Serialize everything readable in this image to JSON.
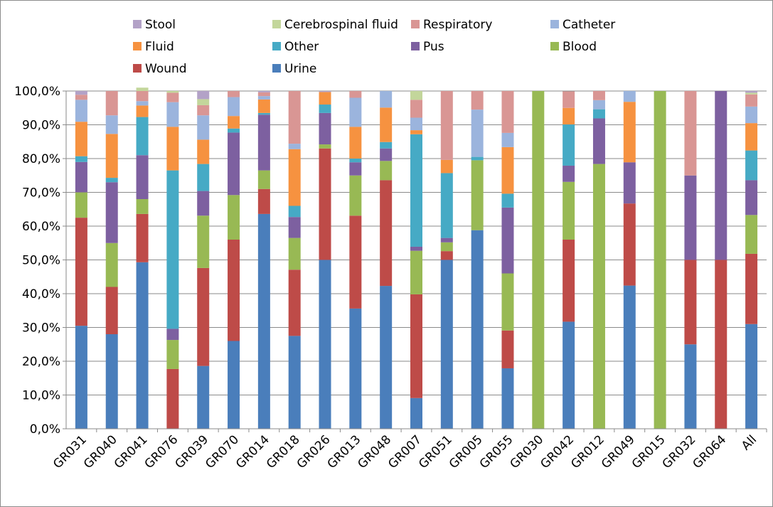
{
  "chart_data": {
    "type": "bar",
    "stacked": true,
    "percent": true,
    "categories": [
      "GR031",
      "GR040",
      "GR041",
      "GR076",
      "GR039",
      "GR070",
      "GR014",
      "GR018",
      "GR026",
      "GR013",
      "GR048",
      "GR007",
      "GR051",
      "GR005",
      "GR055",
      "GR030",
      "GR042",
      "GR012",
      "GR049",
      "GR015",
      "GR032",
      "GR064",
      "All"
    ],
    "ylim": [
      0,
      100
    ],
    "yticks": [
      "0,0%",
      "10,0%",
      "20,0%",
      "30,0%",
      "40,0%",
      "50,0%",
      "60,0%",
      "70,0%",
      "80,0%",
      "90,0%",
      "100,0%"
    ],
    "legend_position": "top",
    "series": [
      {
        "name": "Urine",
        "color": "#4a7ebb",
        "values": [
          30.5,
          28.0,
          49.3,
          0,
          18.6,
          26.0,
          63.6,
          27.5,
          50.0,
          35.6,
          42.3,
          9.1,
          50.0,
          58.8,
          17.9,
          0,
          31.7,
          0,
          42.4,
          0,
          25.0,
          0,
          31.0
        ]
      },
      {
        "name": "Wound",
        "color": "#be4b48",
        "values": [
          32.0,
          14.0,
          14.3,
          17.7,
          29.0,
          30.0,
          7.4,
          19.6,
          33.0,
          27.5,
          31.3,
          30.7,
          2.6,
          0,
          11.2,
          0,
          24.3,
          0,
          24.3,
          0,
          25.0,
          50.0,
          20.8
        ]
      },
      {
        "name": "Blood",
        "color": "#98b954",
        "values": [
          7.5,
          13.0,
          4.4,
          8.6,
          15.5,
          13.2,
          5.5,
          9.4,
          1.2,
          11.9,
          5.7,
          12.9,
          2.6,
          20.7,
          16.9,
          100,
          17.1,
          78.4,
          0,
          100,
          0,
          0,
          11.5
        ]
      },
      {
        "name": "Pus",
        "color": "#7d60a0",
        "values": [
          9.0,
          18.0,
          13.0,
          3.3,
          7.3,
          18.5,
          16.5,
          6.2,
          9.3,
          3.9,
          3.7,
          1.2,
          1.3,
          0,
          19.5,
          0,
          4.8,
          13.5,
          12.2,
          0,
          25.0,
          50.0,
          10.3
        ]
      },
      {
        "name": "Other",
        "color": "#46aac5",
        "values": [
          1.7,
          1.3,
          11.3,
          46.9,
          8.0,
          1.2,
          0.5,
          3.3,
          2.5,
          1.1,
          1.9,
          33.3,
          19.2,
          1.0,
          4.1,
          0,
          12.2,
          2.7,
          0,
          0,
          0,
          0,
          8.8
        ]
      },
      {
        "name": "Fluid",
        "color": "#f69240",
        "values": [
          10.2,
          13.0,
          3.4,
          12.9,
          7.2,
          3.7,
          4.0,
          16.8,
          3.7,
          9.4,
          10.2,
          1.2,
          3.9,
          0,
          13.8,
          0,
          4.9,
          0,
          17.9,
          0,
          0,
          0,
          8.1
        ]
      },
      {
        "name": "Catheter",
        "color": "#9bb4dd",
        "values": [
          6.5,
          5.5,
          1.3,
          7.3,
          7.2,
          5.6,
          1.0,
          1.6,
          0,
          8.6,
          4.9,
          3.7,
          0,
          14.0,
          4.2,
          0,
          0,
          2.7,
          3.2,
          0,
          0,
          0,
          4.9
        ]
      },
      {
        "name": "Respiratory",
        "color": "#d99694",
        "values": [
          1.5,
          7.2,
          3.0,
          2.8,
          3.0,
          1.8,
          1.1,
          15.6,
          0,
          2.0,
          0,
          5.3,
          20.4,
          5.5,
          12.4,
          0,
          4.9,
          2.7,
          0,
          0,
          25.0,
          0,
          3.6
        ]
      },
      {
        "name": "Cerebrospinal fluid",
        "color": "#c3d69b",
        "values": [
          0,
          0,
          1.0,
          0.5,
          1.8,
          0,
          0,
          0,
          0,
          0,
          0,
          2.6,
          0,
          0,
          0,
          0,
          0,
          0,
          0,
          0,
          0,
          0,
          0.5
        ]
      },
      {
        "name": "Stool",
        "color": "#b3a2c7",
        "values": [
          1.1,
          0,
          0,
          0,
          2.4,
          0,
          0.4,
          0,
          0.3,
          0,
          0,
          0,
          0,
          0,
          0,
          0,
          0,
          0,
          0,
          0,
          0,
          0,
          0.5
        ]
      }
    ],
    "legend_order": [
      "Stool",
      "Cerebrospinal fluid",
      "Respiratory",
      "Catheter",
      "Fluid",
      "Other",
      "Pus",
      "Blood",
      "Wound",
      "Urine"
    ]
  }
}
